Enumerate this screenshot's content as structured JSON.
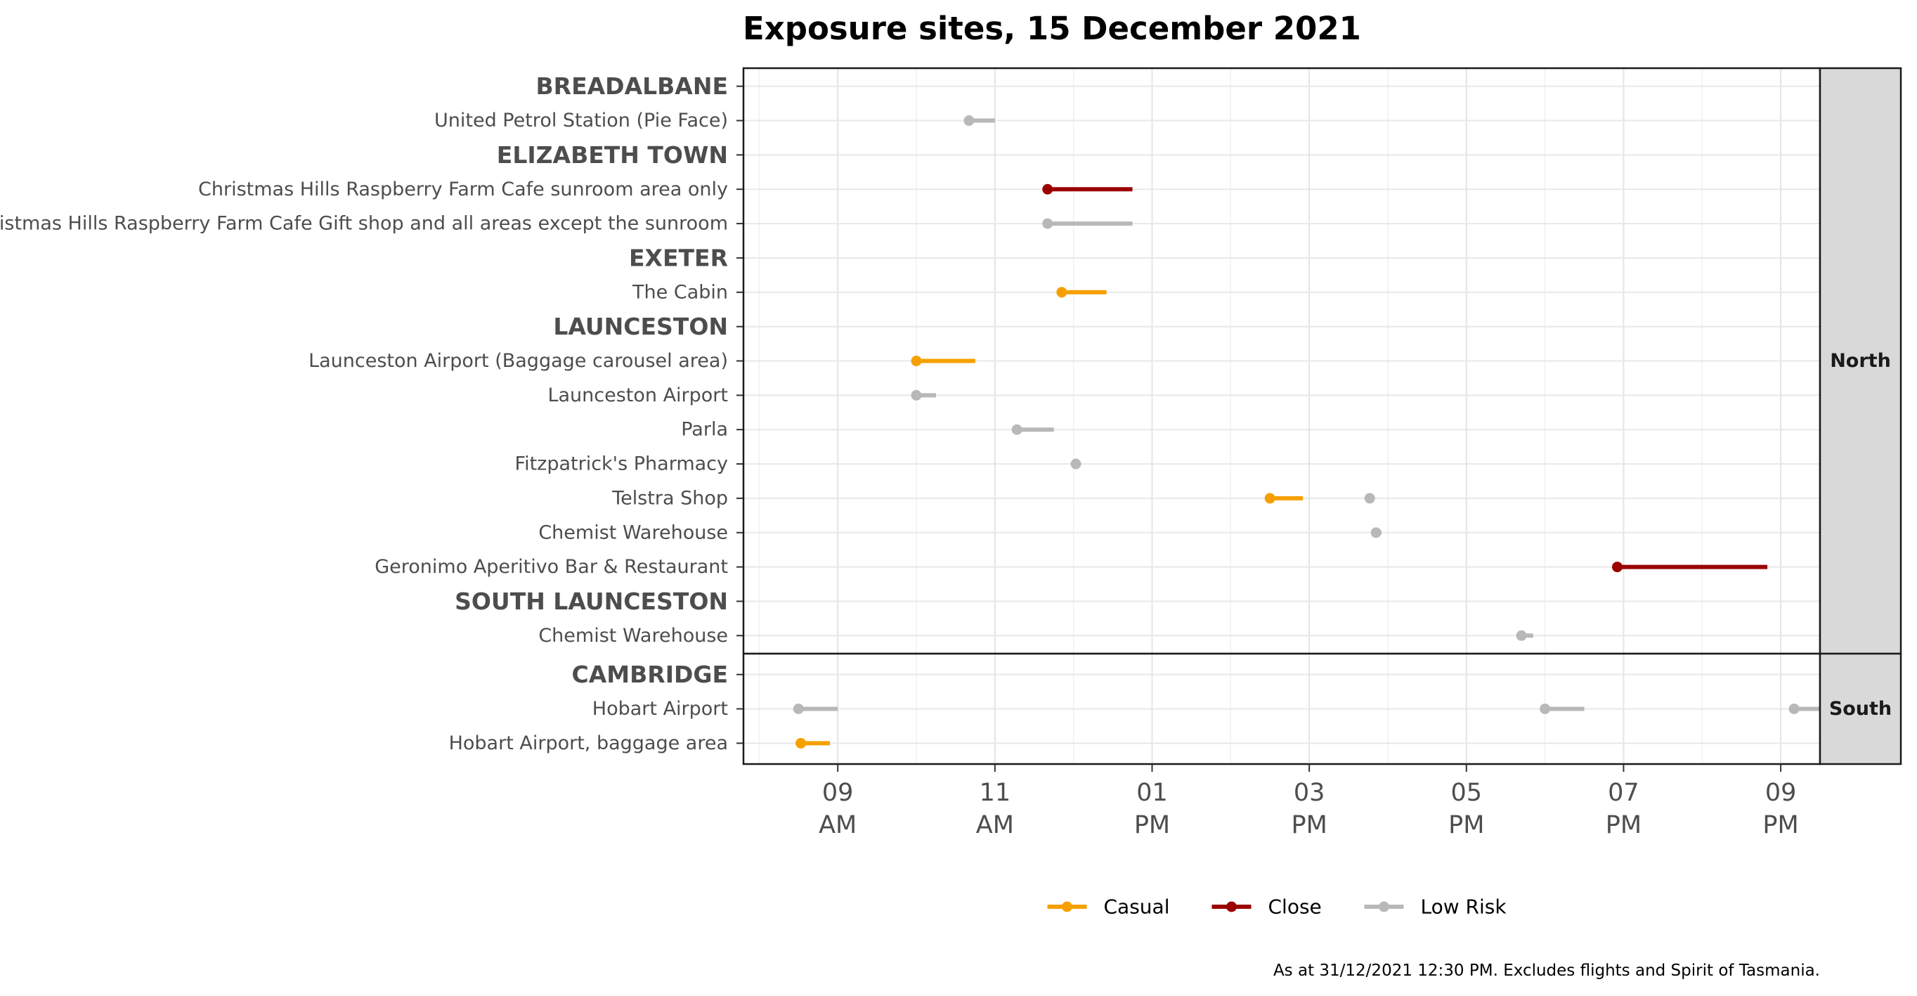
{
  "chart_data": {
    "type": "dumbbell",
    "title": "Exposure sites, 15 December 2021",
    "caption": "As at 31/12/2021 12:30 PM. Excludes flights and Spirit of Tasmania.",
    "x_axis": {
      "unit": "hour of day (24h, decimal)",
      "xlim": [
        7.8,
        21.5
      ],
      "ticks": [
        {
          "value": 9,
          "label_line1": "09",
          "label_line2": "AM"
        },
        {
          "value": 11,
          "label_line1": "11",
          "label_line2": "AM"
        },
        {
          "value": 13,
          "label_line1": "01",
          "label_line2": "PM"
        },
        {
          "value": 15,
          "label_line1": "03",
          "label_line2": "PM"
        },
        {
          "value": 17,
          "label_line1": "05",
          "label_line2": "PM"
        },
        {
          "value": 19,
          "label_line1": "07",
          "label_line2": "PM"
        },
        {
          "value": 21,
          "label_line1": "09",
          "label_line2": "PM"
        }
      ]
    },
    "colors": {
      "Casual": "#f5a000",
      "Close": "#9b0000",
      "Low Risk": "#b8b8b8"
    },
    "legend": {
      "position": "bottom",
      "entries": [
        {
          "label": "Casual",
          "color": "#f5a000"
        },
        {
          "label": "Close",
          "color": "#9b0000"
        },
        {
          "label": "Low Risk",
          "color": "#b8b8b8"
        }
      ]
    },
    "panels": [
      {
        "strip": "North",
        "rows": [
          {
            "label": "BREADALBANE",
            "heading": true,
            "segments": []
          },
          {
            "label": "United Petrol Station (Pie Face)",
            "heading": false,
            "segments": [
              {
                "start": 10.67,
                "end": 11.0,
                "risk": "Low Risk"
              }
            ]
          },
          {
            "label": "ELIZABETH TOWN",
            "heading": true,
            "segments": []
          },
          {
            "label": "Christmas Hills Raspberry Farm Cafe sunroom area only",
            "heading": false,
            "segments": [
              {
                "start": 11.67,
                "end": 12.75,
                "risk": "Close"
              }
            ]
          },
          {
            "label": "Christmas Hills Raspberry Farm Cafe Gift shop and all areas except the sunroom",
            "heading": false,
            "segments": [
              {
                "start": 11.67,
                "end": 12.75,
                "risk": "Low Risk"
              }
            ]
          },
          {
            "label": "EXETER",
            "heading": true,
            "segments": []
          },
          {
            "label": "The Cabin",
            "heading": false,
            "segments": [
              {
                "start": 11.85,
                "end": 12.42,
                "risk": "Casual"
              }
            ]
          },
          {
            "label": "LAUNCESTON",
            "heading": true,
            "segments": []
          },
          {
            "label": "Launceston Airport (Baggage carousel area)",
            "heading": false,
            "segments": [
              {
                "start": 10.0,
                "end": 10.75,
                "risk": "Casual"
              }
            ]
          },
          {
            "label": "Launceston Airport",
            "heading": false,
            "segments": [
              {
                "start": 10.0,
                "end": 10.25,
                "risk": "Low Risk"
              }
            ]
          },
          {
            "label": "Parla",
            "heading": false,
            "segments": [
              {
                "start": 11.28,
                "end": 11.75,
                "risk": "Low Risk"
              }
            ]
          },
          {
            "label": "Fitzpatrick's Pharmacy",
            "heading": false,
            "segments": [
              {
                "start": 12.03,
                "end": 12.08,
                "risk": "Low Risk"
              }
            ]
          },
          {
            "label": "Telstra Shop",
            "heading": false,
            "segments": [
              {
                "start": 14.5,
                "end": 14.92,
                "risk": "Casual"
              },
              {
                "start": 15.77,
                "end": 15.8,
                "risk": "Low Risk"
              }
            ]
          },
          {
            "label": "Chemist Warehouse",
            "heading": false,
            "segments": [
              {
                "start": 15.85,
                "end": 15.92,
                "risk": "Low Risk"
              }
            ]
          },
          {
            "label": "Geronimo Aperitivo Bar & Restaurant",
            "heading": false,
            "segments": [
              {
                "start": 18.92,
                "end": 20.83,
                "risk": "Close"
              }
            ]
          },
          {
            "label": "SOUTH LAUNCESTON",
            "heading": true,
            "segments": []
          },
          {
            "label": "Chemist Warehouse",
            "heading": false,
            "segments": [
              {
                "start": 17.7,
                "end": 17.85,
                "risk": "Low Risk"
              }
            ]
          }
        ]
      },
      {
        "strip": "South",
        "rows": [
          {
            "label": "CAMBRIDGE",
            "heading": true,
            "segments": []
          },
          {
            "label": "Hobart Airport",
            "heading": false,
            "segments": [
              {
                "start": 8.5,
                "end": 9.0,
                "risk": "Low Risk"
              },
              {
                "start": 18.0,
                "end": 18.5,
                "risk": "Low Risk"
              },
              {
                "start": 21.17,
                "end": 21.5,
                "risk": "Low Risk"
              }
            ]
          },
          {
            "label": "Hobart Airport, baggage area",
            "heading": false,
            "segments": [
              {
                "start": 8.53,
                "end": 8.9,
                "risk": "Casual"
              }
            ]
          }
        ]
      }
    ]
  }
}
